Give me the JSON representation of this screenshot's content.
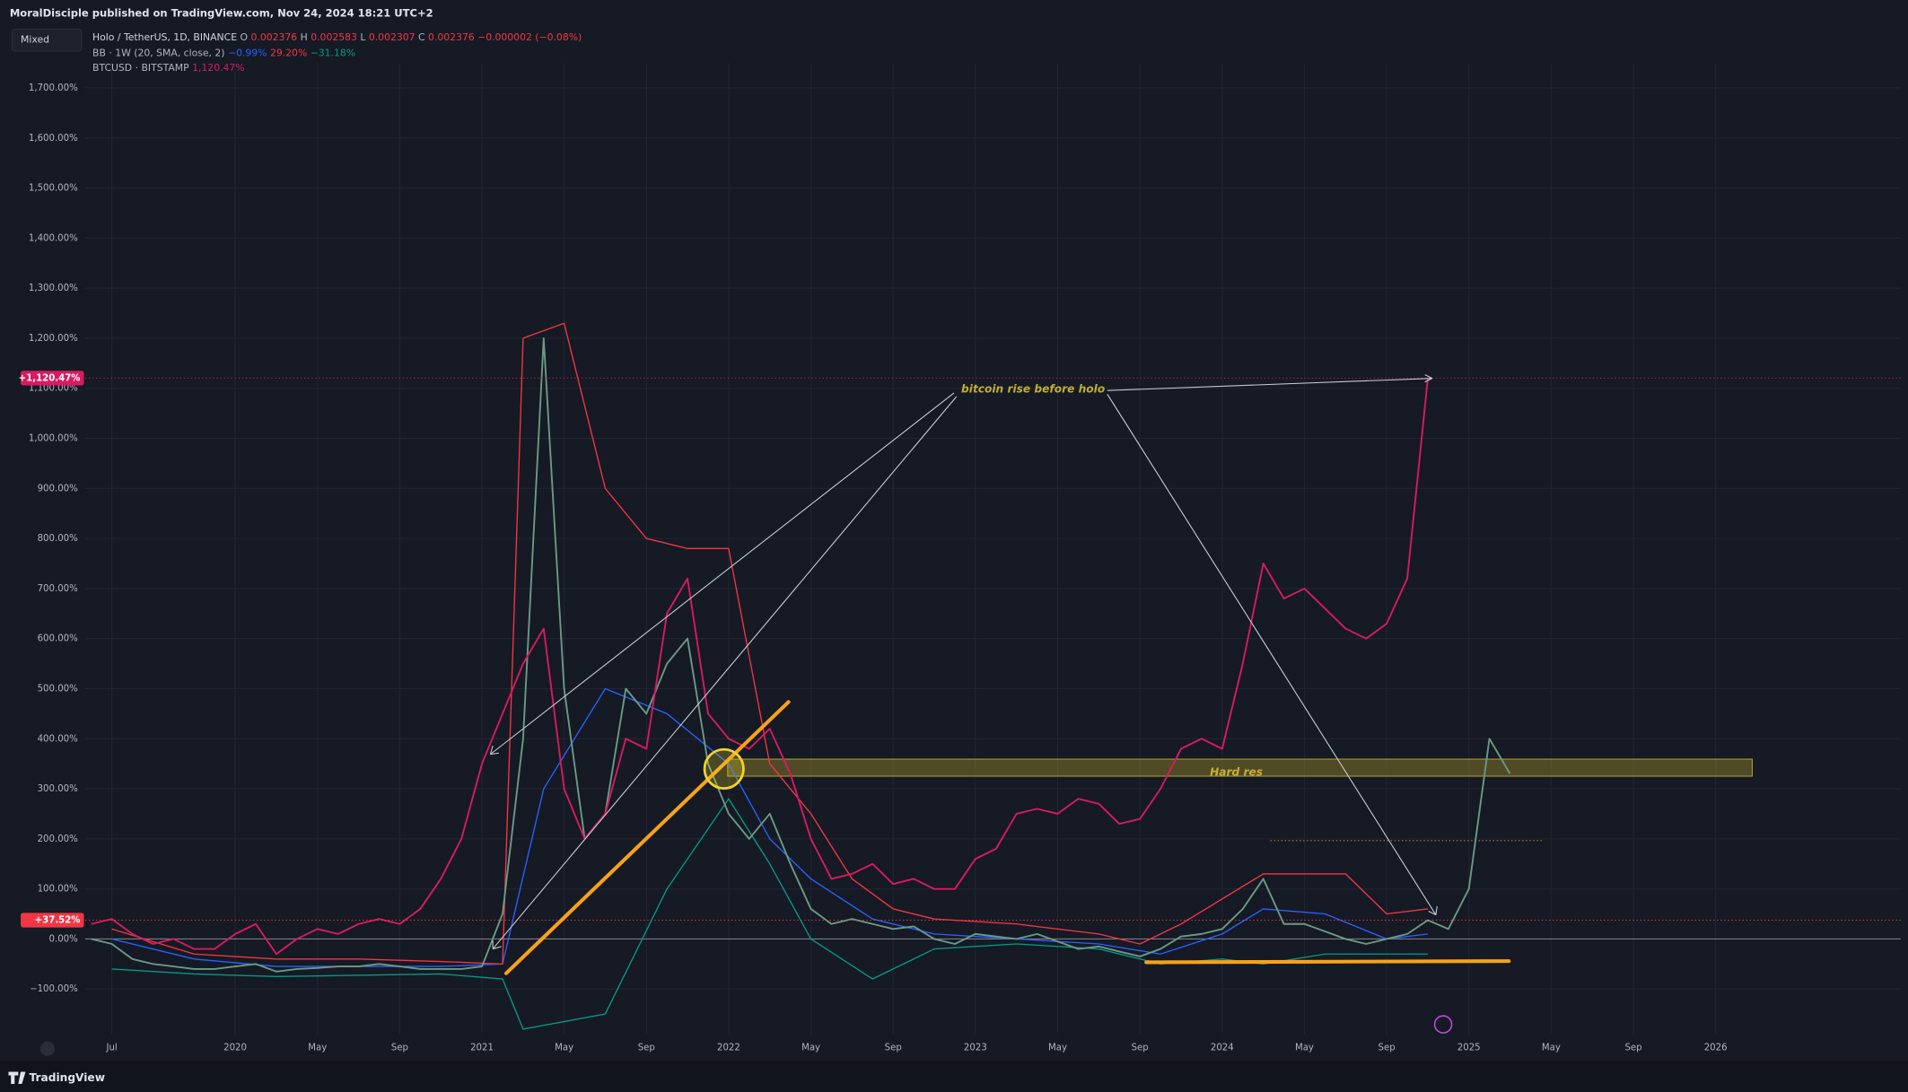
{
  "chart_data": {
    "type": "line",
    "publisher": "MoralDisciple published on TradingView.com, Nov 24, 2024 18:21 UTC+2",
    "scale_mode": "Mixed",
    "brand": "TradingView",
    "ohlc": [
      {
        "label": "O",
        "value": 0.002376
      },
      {
        "label": "H",
        "value": 0.002583
      },
      {
        "label": "L",
        "value": 0.002307
      },
      {
        "label": "C",
        "value": 0.002376
      }
    ],
    "change": "−0.000002 (−0.08%)",
    "annotations": [
      "bitcoin rise before holo",
      "Hard res"
    ],
    "x": [
      "2019-06",
      "2019-07",
      "2019-08",
      "2019-09",
      "2019-10",
      "2019-11",
      "2019-12",
      "2020-01",
      "2020-02",
      "2020-03",
      "2020-04",
      "2020-05",
      "2020-06",
      "2020-07",
      "2020-08",
      "2020-09",
      "2020-10",
      "2020-11",
      "2020-12",
      "2021-01",
      "2021-02",
      "2021-03",
      "2021-04",
      "2021-05",
      "2021-06",
      "2021-07",
      "2021-08",
      "2021-09",
      "2021-10",
      "2021-11",
      "2021-12",
      "2022-01",
      "2022-02",
      "2022-03",
      "2022-04",
      "2022-05",
      "2022-06",
      "2022-07",
      "2022-08",
      "2022-09",
      "2022-10",
      "2022-11",
      "2022-12",
      "2023-01",
      "2023-02",
      "2023-03",
      "2023-04",
      "2023-05",
      "2023-06",
      "2023-07",
      "2023-08",
      "2023-09",
      "2023-10",
      "2023-11",
      "2023-12",
      "2024-01",
      "2024-02",
      "2024-03",
      "2024-04",
      "2024-05",
      "2024-06",
      "2024-07",
      "2024-08",
      "2024-09",
      "2024-10",
      "2024-11",
      "2024-12",
      "2025-01",
      "2025-02",
      "2025-03"
    ],
    "series": [
      {
        "name": "Holo / TetherUS, 1D, BINANCE",
        "color": "#6a9a86",
        "values": [
          0,
          -10,
          -40,
          -50,
          -55,
          -60,
          -60,
          -55,
          -50,
          -65,
          -60,
          -58,
          -55,
          -55,
          -50,
          -55,
          -60,
          -60,
          -60,
          -55,
          50,
          400,
          1200,
          500,
          200,
          250,
          500,
          450,
          550,
          600,
          350,
          250,
          200,
          250,
          150,
          60,
          30,
          40,
          30,
          20,
          25,
          0,
          -10,
          10,
          5,
          0,
          10,
          -5,
          -20,
          -15,
          -25,
          -35,
          -20,
          5,
          10,
          20,
          60,
          120,
          30,
          30,
          15,
          0,
          -10,
          0,
          10,
          37.52,
          20,
          100,
          400,
          330
        ]
      },
      {
        "name": "BTCUSD · BITSTAMP",
        "color": "#d81b60",
        "readout": "1,120.47%",
        "values": [
          30,
          40,
          10,
          -10,
          0,
          -20,
          -20,
          10,
          30,
          -30,
          0,
          20,
          10,
          30,
          40,
          30,
          60,
          120,
          200,
          350,
          450,
          550,
          620,
          300,
          200,
          250,
          400,
          380,
          650,
          720,
          450,
          400,
          380,
          420,
          330,
          200,
          120,
          130,
          150,
          110,
          120,
          100,
          100,
          160,
          180,
          250,
          260,
          250,
          280,
          270,
          230,
          240,
          300,
          380,
          400,
          380,
          550,
          750,
          680,
          700,
          660,
          620,
          600,
          630,
          720,
          1120.47,
          null,
          null,
          null,
          null
        ]
      }
    ],
    "bands": {
      "name": "BB · 1W (20, SMA, close, 2)",
      "lines": [
        {
          "readout": "−0.99%",
          "color": "#2962ff",
          "x": [
            "2019-07",
            "2019-11",
            "2020-03",
            "2020-11",
            "2021-02",
            "2021-04",
            "2021-07",
            "2021-10",
            "2022-01",
            "2022-03",
            "2022-05",
            "2022-08",
            "2022-11",
            "2023-03",
            "2023-07",
            "2023-10",
            "2024-01",
            "2024-03",
            "2024-06",
            "2024-09",
            "2024-11"
          ],
          "values": [
            0,
            -40,
            -55,
            -55,
            -50,
            300,
            500,
            450,
            350,
            200,
            120,
            40,
            10,
            0,
            -10,
            -30,
            10,
            60,
            50,
            0,
            10
          ]
        },
        {
          "readout": "29.20%",
          "color": "#f23645",
          "x": [
            "2019-07",
            "2019-11",
            "2020-03",
            "2020-07",
            "2020-11",
            "2021-02",
            "2021-03",
            "2021-05",
            "2021-07",
            "2021-09",
            "2021-11",
            "2022-01",
            "2022-03",
            "2022-05",
            "2022-07",
            "2022-09",
            "2022-11",
            "2023-03",
            "2023-07",
            "2023-09",
            "2023-11",
            "2024-03",
            "2024-07",
            "2024-09",
            "2024-11"
          ],
          "values": [
            20,
            -30,
            -40,
            -40,
            -45,
            -50,
            1200,
            1230,
            900,
            800,
            780,
            780,
            350,
            250,
            120,
            60,
            40,
            30,
            10,
            -10,
            30,
            130,
            130,
            50,
            60
          ]
        },
        {
          "readout": "−31.18%",
          "color": "#089981",
          "x": [
            "2019-07",
            "2019-11",
            "2020-03",
            "2020-11",
            "2021-02",
            "2021-03",
            "2021-07",
            "2021-10",
            "2022-01",
            "2022-03",
            "2022-05",
            "2022-08",
            "2022-11",
            "2023-03",
            "2023-07",
            "2023-10",
            "2024-01",
            "2024-03",
            "2024-06",
            "2024-09",
            "2024-11"
          ],
          "values": [
            -60,
            -70,
            -75,
            -70,
            -80,
            -180,
            -150,
            100,
            280,
            150,
            0,
            -80,
            -20,
            -10,
            -20,
            -50,
            -40,
            -50,
            -30,
            -30,
            -30
          ]
        }
      ]
    },
    "price_tags": [
      {
        "label": "+1,120.47%",
        "value": 1120.47,
        "color": "#d81b60"
      },
      {
        "label": "+37.52%",
        "value": 37.52,
        "color": "#f23645"
      }
    ],
    "xlim": [
      "2019-06",
      "2026-10"
    ],
    "xticks": [
      {
        "value": "2019-07",
        "label": "Jul"
      },
      {
        "value": "2020-01",
        "label": "2020"
      },
      {
        "value": "2020-05",
        "label": "May"
      },
      {
        "value": "2020-09",
        "label": "Sep"
      },
      {
        "value": "2021-01",
        "label": "2021"
      },
      {
        "value": "2021-05",
        "label": "May"
      },
      {
        "value": "2021-09",
        "label": "Sep"
      },
      {
        "value": "2022-01",
        "label": "2022"
      },
      {
        "value": "2022-05",
        "label": "May"
      },
      {
        "value": "2022-09",
        "label": "Sep"
      },
      {
        "value": "2023-01",
        "label": "2023"
      },
      {
        "value": "2023-05",
        "label": "May"
      },
      {
        "value": "2023-09",
        "label": "Sep"
      },
      {
        "value": "2024-01",
        "label": "2024"
      },
      {
        "value": "2024-05",
        "label": "May"
      },
      {
        "value": "2024-09",
        "label": "Sep"
      },
      {
        "value": "2025-01",
        "label": "2025"
      },
      {
        "value": "2025-05",
        "label": "May"
      },
      {
        "value": "2025-09",
        "label": "Sep"
      },
      {
        "value": "2026-01",
        "label": "2026"
      }
    ],
    "ylim": [
      -190,
      1725
    ],
    "yticks": [
      {
        "value": -100,
        "label": "−100.00%"
      },
      {
        "value": 0,
        "label": "0.00%"
      },
      {
        "value": 100,
        "label": "100.00%"
      },
      {
        "value": 200,
        "label": "200.00%"
      },
      {
        "value": 300,
        "label": "300.00%"
      },
      {
        "value": 400,
        "label": "400.00%"
      },
      {
        "value": 500,
        "label": "500.00%"
      },
      {
        "value": 600,
        "label": "600.00%"
      },
      {
        "value": 700,
        "label": "700.00%"
      },
      {
        "value": 800,
        "label": "800.00%"
      },
      {
        "value": 900,
        "label": "900.00%"
      },
      {
        "value": 1000,
        "label": "1,000.00%"
      },
      {
        "value": 1100,
        "label": "1,100.00%"
      },
      {
        "value": 1200,
        "label": "1,200.00%"
      },
      {
        "value": 1300,
        "label": "1,300.00%"
      },
      {
        "value": 1400,
        "label": "1,400.00%"
      },
      {
        "value": 1500,
        "label": "1,500.00%"
      },
      {
        "value": 1600,
        "label": "1,600.00%"
      },
      {
        "value": 1700,
        "label": "1,700.00%"
      }
    ],
    "grid": true
  }
}
